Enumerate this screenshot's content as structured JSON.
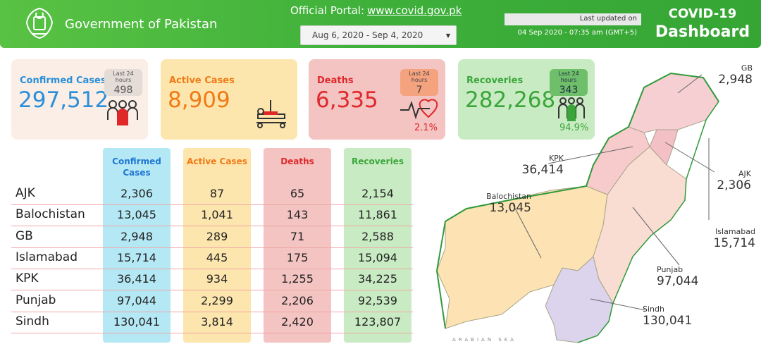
{
  "header": {
    "gov_title": "Government of Pakistan",
    "portal_prefix": "Official Portal:",
    "portal_url": "www.covid.gov.pk",
    "date_range": "Aug 6, 2020 - Sep 4, 2020",
    "last_updated_label": "Last updated on",
    "last_updated_value": "04 Sep 2020 - 07:35 am (GMT+5)",
    "dashboard_title_1": "COVID-19",
    "dashboard_title_2": "Dashboard"
  },
  "cards": {
    "confirmed": {
      "label": "Confirmed Cases",
      "value": "297,512",
      "last24_label": "Last 24 hours",
      "last24_value": "498"
    },
    "active": {
      "label": "Active Cases",
      "value": "8,909"
    },
    "deaths": {
      "label": "Deaths",
      "value": "6,335",
      "last24_label": "Last 24 hours",
      "last24_value": "7",
      "percent": "2.1%"
    },
    "recoveries": {
      "label": "Recoveries",
      "value": "282,268",
      "last24_label": "Last 24 hours",
      "last24_value": "343",
      "percent": "94.9%"
    }
  },
  "table": {
    "headers": [
      "Confirmed Cases",
      "Active Cases",
      "Deaths",
      "Recoveries"
    ],
    "header_colors": [
      "#1f77d4",
      "#f07a16",
      "#e0282a",
      "#3aa63a"
    ],
    "column_bg": [
      "#b5e8f5",
      "#fde6ae",
      "#f3c4c2",
      "#c9ebc3"
    ],
    "rows": [
      {
        "region": "AJK",
        "confirmed": "2,306",
        "active": "87",
        "deaths": "65",
        "recoveries": "2,154"
      },
      {
        "region": "Balochistan",
        "confirmed": "13,045",
        "active": "1,041",
        "deaths": "143",
        "recoveries": "11,861"
      },
      {
        "region": "GB",
        "confirmed": "2,948",
        "active": "289",
        "deaths": "71",
        "recoveries": "2,588"
      },
      {
        "region": "Islamabad",
        "confirmed": "15,714",
        "active": "445",
        "deaths": "175",
        "recoveries": "15,094"
      },
      {
        "region": "KPK",
        "confirmed": "36,414",
        "active": "934",
        "deaths": "1,255",
        "recoveries": "34,225"
      },
      {
        "region": "Punjab",
        "confirmed": "97,044",
        "active": "2,299",
        "deaths": "2,206",
        "recoveries": "92,539"
      },
      {
        "region": "Sindh",
        "confirmed": "130,041",
        "active": "3,814",
        "deaths": "2,420",
        "recoveries": "123,807"
      }
    ]
  },
  "map": {
    "labels": [
      {
        "name": "GB",
        "value": "2,948"
      },
      {
        "name": "KPK",
        "value": "36,414"
      },
      {
        "name": "AJK",
        "value": "2,306"
      },
      {
        "name": "Balochistan",
        "value": "13,045"
      },
      {
        "name": "Islamabad",
        "value": "15,714"
      },
      {
        "name": "Punjab",
        "value": "97,044"
      },
      {
        "name": "Sindh",
        "value": "130,041"
      }
    ],
    "sea_label": "ARABIAN SEA"
  }
}
